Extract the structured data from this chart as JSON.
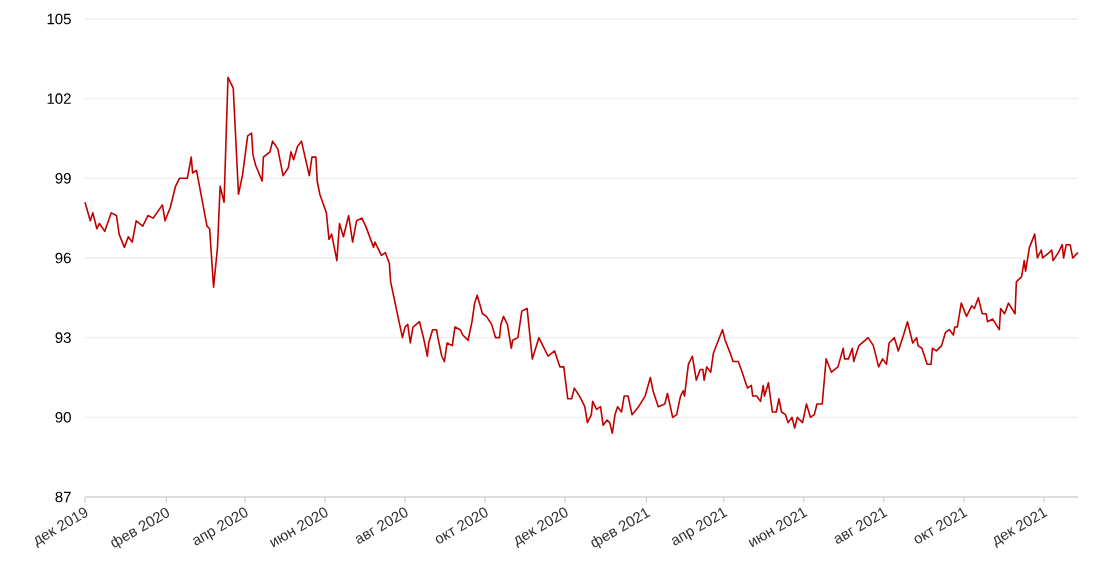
{
  "chart_data": {
    "type": "line",
    "x": [
      "2019-12-01",
      "2019-12-05",
      "2019-12-07",
      "2019-12-10",
      "2019-12-12",
      "2019-12-16",
      "2019-12-21",
      "2019-12-25",
      "2019-12-27",
      "2019-12-31",
      "2020-01-03",
      "2020-01-06",
      "2020-01-09",
      "2020-01-14",
      "2020-01-18",
      "2020-01-22",
      "2020-01-29",
      "2020-01-31",
      "2020-02-04",
      "2020-02-08",
      "2020-02-11",
      "2020-02-17",
      "2020-02-20",
      "2020-02-21",
      "2020-02-24",
      "2020-03-03",
      "2020-03-05",
      "2020-03-08",
      "2020-03-11",
      "2020-03-13",
      "2020-03-16",
      "2020-03-19",
      "2020-03-23",
      "2020-03-27",
      "2020-03-30",
      "2020-04-03",
      "2020-04-06",
      "2020-04-07",
      "2020-04-09",
      "2020-04-14",
      "2020-04-15",
      "2020-04-20",
      "2020-04-22",
      "2020-04-26",
      "2020-04-30",
      "2020-05-04",
      "2020-05-06",
      "2020-05-08",
      "2020-05-11",
      "2020-05-14",
      "2020-05-20",
      "2020-05-22",
      "2020-05-25",
      "2020-05-26",
      "2020-05-28",
      "2020-06-02",
      "2020-06-04",
      "2020-06-06",
      "2020-06-10",
      "2020-06-12",
      "2020-06-15",
      "2020-06-19",
      "2020-06-22",
      "2020-06-25",
      "2020-06-29",
      "2020-07-02",
      "2020-07-08",
      "2020-07-09",
      "2020-07-14",
      "2020-07-17",
      "2020-07-20",
      "2020-07-21",
      "2020-07-27",
      "2020-07-30",
      "2020-08-01",
      "2020-08-03",
      "2020-08-05",
      "2020-08-07",
      "2020-08-12",
      "2020-08-15",
      "2020-08-18",
      "2020-08-19",
      "2020-08-22",
      "2020-08-25",
      "2020-08-26",
      "2020-08-29",
      "2020-08-31",
      "2020-09-02",
      "2020-09-06",
      "2020-09-08",
      "2020-09-12",
      "2020-09-14",
      "2020-09-18",
      "2020-09-21",
      "2020-09-23",
      "2020-09-25",
      "2020-09-29",
      "2020-10-02",
      "2020-10-06",
      "2020-10-09",
      "2020-10-12",
      "2020-10-13",
      "2020-10-15",
      "2020-10-18",
      "2020-10-21",
      "2020-10-22",
      "2020-10-26",
      "2020-10-29",
      "2020-11-02",
      "2020-11-06",
      "2020-11-11",
      "2020-11-14",
      "2020-11-18",
      "2020-11-23",
      "2020-11-27",
      "2020-11-30",
      "2020-12-03",
      "2020-12-06",
      "2020-12-08",
      "2020-12-12",
      "2020-12-16",
      "2020-12-18",
      "2020-12-21",
      "2020-12-22",
      "2020-12-25",
      "2020-12-28",
      "2020-12-30",
      "2021-01-02",
      "2021-01-04",
      "2021-01-06",
      "2021-01-08",
      "2021-01-10",
      "2021-01-13",
      "2021-01-15",
      "2021-01-18",
      "2021-01-21",
      "2021-01-26",
      "2021-01-31",
      "2021-02-04",
      "2021-02-06",
      "2021-02-10",
      "2021-02-15",
      "2021-02-17",
      "2021-02-21",
      "2021-02-24",
      "2021-02-27",
      "2021-03-01",
      "2021-03-02",
      "2021-03-05",
      "2021-03-08",
      "2021-03-11",
      "2021-03-14",
      "2021-03-16",
      "2021-03-17",
      "2021-03-19",
      "2021-03-22",
      "2021-03-24",
      "2021-03-27",
      "2021-03-31",
      "2021-04-02",
      "2021-04-06",
      "2021-04-08",
      "2021-04-12",
      "2021-04-15",
      "2021-04-17",
      "2021-04-19",
      "2021-04-22",
      "2021-04-23",
      "2021-04-26",
      "2021-04-29",
      "2021-05-01",
      "2021-05-02",
      "2021-05-05",
      "2021-05-08",
      "2021-05-11",
      "2021-05-13",
      "2021-05-15",
      "2021-05-18",
      "2021-05-20",
      "2021-05-23",
      "2021-05-25",
      "2021-05-27",
      "2021-05-31",
      "2021-06-03",
      "2021-06-06",
      "2021-06-09",
      "2021-06-11",
      "2021-06-15",
      "2021-06-18",
      "2021-06-22",
      "2021-06-27",
      "2021-07-01",
      "2021-07-02",
      "2021-07-05",
      "2021-07-08",
      "2021-07-09",
      "2021-07-13",
      "2021-07-20",
      "2021-07-24",
      "2021-07-28",
      "2021-07-31",
      "2021-08-03",
      "2021-08-05",
      "2021-08-09",
      "2021-08-12",
      "2021-08-16",
      "2021-08-19",
      "2021-08-23",
      "2021-08-26",
      "2021-08-27",
      "2021-08-30",
      "2021-09-03",
      "2021-09-06",
      "2021-09-07",
      "2021-09-10",
      "2021-09-14",
      "2021-09-17",
      "2021-09-20",
      "2021-09-23",
      "2021-09-24",
      "2021-09-26",
      "2021-09-29",
      "2021-10-03",
      "2021-10-07",
      "2021-10-09",
      "2021-10-12",
      "2021-10-15",
      "2021-10-18",
      "2021-10-19",
      "2021-10-23",
      "2021-10-28",
      "2021-10-29",
      "2021-11-01",
      "2021-11-04",
      "2021-11-09",
      "2021-11-10",
      "2021-11-14",
      "2021-11-16",
      "2021-11-17",
      "2021-11-20",
      "2021-11-24",
      "2021-11-26",
      "2021-11-29",
      "2021-11-30",
      "2021-12-05",
      "2021-12-07",
      "2021-12-08",
      "2021-12-12",
      "2021-12-15",
      "2021-12-16",
      "2021-12-18",
      "2021-12-21",
      "2021-12-23",
      "2021-12-27"
    ],
    "series": [
      {
        "color": "#c00000",
        "values": [
          98.1,
          97.4,
          97.7,
          97.1,
          97.3,
          97.0,
          97.7,
          97.6,
          96.9,
          96.4,
          96.8,
          96.6,
          97.4,
          97.2,
          97.6,
          97.5,
          98.0,
          97.4,
          97.9,
          98.7,
          99.0,
          99.0,
          99.8,
          99.2,
          99.3,
          97.2,
          97.1,
          94.9,
          96.4,
          98.7,
          98.1,
          102.8,
          102.4,
          98.4,
          99.1,
          100.6,
          100.7,
          99.9,
          99.5,
          98.9,
          99.8,
          100.0,
          100.4,
          100.1,
          99.1,
          99.4,
          100.0,
          99.7,
          100.2,
          100.4,
          99.1,
          99.8,
          99.8,
          98.9,
          98.4,
          97.7,
          96.7,
          96.9,
          95.9,
          97.3,
          96.8,
          97.6,
          96.6,
          97.4,
          97.5,
          97.2,
          96.4,
          96.6,
          96.1,
          96.2,
          95.8,
          95.1,
          93.7,
          93.0,
          93.4,
          93.5,
          92.8,
          93.4,
          93.6,
          93.0,
          92.3,
          92.8,
          93.3,
          93.3,
          93.0,
          92.3,
          92.1,
          92.8,
          92.7,
          93.4,
          93.3,
          93.1,
          92.9,
          93.6,
          94.3,
          94.6,
          93.9,
          93.8,
          93.5,
          93.0,
          93.0,
          93.5,
          93.8,
          93.5,
          92.6,
          92.9,
          93.0,
          94.0,
          94.1,
          92.2,
          93.0,
          92.7,
          92.3,
          92.5,
          91.9,
          91.9,
          90.7,
          90.7,
          91.1,
          90.8,
          90.4,
          89.8,
          90.1,
          90.6,
          90.3,
          90.4,
          89.7,
          89.9,
          89.8,
          89.4,
          90.1,
          90.4,
          90.2,
          90.8,
          90.8,
          90.1,
          90.4,
          90.8,
          91.5,
          91.0,
          90.4,
          90.5,
          90.9,
          90.0,
          90.1,
          90.8,
          91.0,
          90.8,
          92.0,
          92.3,
          91.4,
          91.8,
          91.8,
          91.4,
          91.9,
          91.7,
          92.4,
          92.8,
          93.3,
          92.9,
          92.4,
          92.1,
          92.1,
          91.7,
          91.4,
          91.1,
          91.2,
          90.8,
          90.8,
          90.6,
          91.2,
          90.8,
          91.3,
          90.2,
          90.2,
          90.7,
          90.2,
          90.1,
          89.8,
          90.0,
          89.6,
          90.0,
          89.8,
          90.5,
          90.0,
          90.1,
          90.5,
          90.5,
          92.2,
          91.7,
          91.9,
          92.6,
          92.2,
          92.2,
          92.6,
          92.1,
          92.7,
          93.0,
          92.7,
          91.9,
          92.2,
          92.0,
          92.8,
          93.0,
          92.5,
          93.1,
          93.6,
          92.8,
          93.0,
          92.7,
          92.6,
          92.0,
          92.0,
          92.6,
          92.5,
          92.7,
          93.2,
          93.3,
          93.1,
          93.4,
          93.4,
          94.3,
          93.8,
          94.2,
          94.1,
          94.5,
          93.9,
          93.9,
          93.6,
          93.7,
          93.3,
          94.1,
          93.9,
          94.3,
          93.9,
          95.1,
          95.3,
          95.9,
          95.5,
          96.4,
          96.9,
          96.0,
          96.3,
          96.0,
          96.2,
          96.3,
          95.9,
          96.2,
          96.5,
          96.0,
          96.5,
          96.5,
          96.0,
          96.2
        ]
      }
    ],
    "xlim": [
      "2019-12-01",
      "2021-12-27"
    ],
    "xticks": [
      {
        "value": "2019-12-01",
        "label": "дек 2019"
      },
      {
        "value": "2020-02-01",
        "label": "фев 2020"
      },
      {
        "value": "2020-04-01",
        "label": "апр 2020"
      },
      {
        "value": "2020-06-01",
        "label": "июн 2020"
      },
      {
        "value": "2020-08-01",
        "label": "авг 2020"
      },
      {
        "value": "2020-10-01",
        "label": "окт 2020"
      },
      {
        "value": "2020-12-01",
        "label": "дек 2020"
      },
      {
        "value": "2021-02-01",
        "label": "фев 2021"
      },
      {
        "value": "2021-04-01",
        "label": "апр 2021"
      },
      {
        "value": "2021-06-01",
        "label": "июн 2021"
      },
      {
        "value": "2021-08-01",
        "label": "авг 2021"
      },
      {
        "value": "2021-10-01",
        "label": "окт 2021"
      },
      {
        "value": "2021-12-01",
        "label": "дек 2021"
      }
    ],
    "ylim": [
      87,
      105
    ],
    "yticks": [
      87,
      90,
      93,
      96,
      99,
      102,
      105
    ],
    "grid": "y"
  }
}
